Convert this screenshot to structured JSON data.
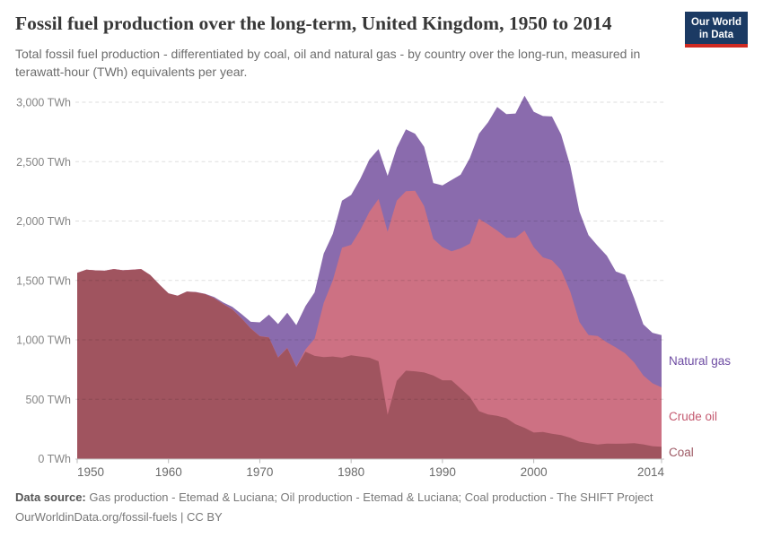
{
  "header": {
    "title": "Fossil fuel production over the long-term, United Kingdom, 1950 to 2014",
    "subtitle": "Total fossil fuel production - differentiated by coal, oil and natural gas - by country over the long-run, measured in terawatt-hour (TWh) equivalents per year.",
    "logo": {
      "line1": "Our World",
      "line2": "in Data",
      "bg_color": "#1B3A63",
      "accent_color": "#CF2A22"
    }
  },
  "chart_data": {
    "type": "area",
    "stacked": true,
    "title": "Fossil fuel production over the long-term, United Kingdom, 1950 to 2014",
    "xlabel": "",
    "ylabel": "TWh",
    "grid": true,
    "legend_position": "right",
    "xlim": [
      1950,
      2014
    ],
    "ylim": [
      0,
      3000
    ],
    "x": [
      1950,
      1951,
      1952,
      1953,
      1954,
      1955,
      1956,
      1957,
      1958,
      1959,
      1960,
      1961,
      1962,
      1963,
      1964,
      1965,
      1966,
      1967,
      1968,
      1969,
      1970,
      1971,
      1972,
      1973,
      1974,
      1975,
      1976,
      1977,
      1978,
      1979,
      1980,
      1981,
      1982,
      1983,
      1984,
      1985,
      1986,
      1987,
      1988,
      1989,
      1990,
      1991,
      1992,
      1993,
      1994,
      1995,
      1996,
      1997,
      1998,
      1999,
      2000,
      2001,
      2002,
      2003,
      2004,
      2005,
      2006,
      2007,
      2008,
      2009,
      2010,
      2011,
      2012,
      2013,
      2014
    ],
    "series": [
      {
        "name": "Coal",
        "color": "#A0545F",
        "label_color": "#9D5964",
        "values": [
          1563,
          1590,
          1584,
          1581,
          1595,
          1585,
          1589,
          1595,
          1545,
          1465,
          1390,
          1370,
          1405,
          1400,
          1385,
          1350,
          1300,
          1255,
          1180,
          1095,
          1030,
          1020,
          850,
          930,
          770,
          900,
          865,
          855,
          860,
          850,
          870,
          860,
          850,
          820,
          370,
          655,
          740,
          735,
          725,
          700,
          660,
          660,
          590,
          520,
          400,
          371,
          360,
          340,
          290,
          260,
          220,
          224,
          210,
          198,
          176,
          143,
          130,
          119,
          127,
          125,
          127,
          130,
          120,
          105,
          100
        ]
      },
      {
        "name": "Crude oil",
        "color": "#CD7183",
        "label_color": "#C45A70",
        "values": [
          1,
          1,
          1,
          1,
          1,
          1,
          1,
          1,
          1,
          1,
          1,
          1,
          1,
          1,
          1,
          2,
          2,
          2,
          2,
          2,
          2,
          2,
          3,
          4,
          4,
          19,
          145,
          455,
          642,
          926,
          930,
          1064,
          1227,
          1366,
          1540,
          1517,
          1511,
          1520,
          1400,
          1150,
          1120,
          1085,
          1180,
          1290,
          1620,
          1600,
          1560,
          1520,
          1570,
          1660,
          1560,
          1470,
          1460,
          1390,
          1230,
          1007,
          911,
          913,
          852,
          811,
          760,
          680,
          580,
          530,
          500
        ]
      },
      {
        "name": "Natural gas",
        "color": "#8A6BAD",
        "label_color": "#6E4CA3",
        "values": [
          0,
          0,
          0,
          0,
          0,
          0,
          0,
          0,
          0,
          0,
          1,
          1,
          1,
          2,
          2,
          8,
          12,
          20,
          35,
          55,
          115,
          190,
          280,
          295,
          350,
          365,
          390,
          415,
          390,
          395,
          420,
          430,
          440,
          420,
          470,
          445,
          520,
          480,
          500,
          470,
          520,
          600,
          620,
          720,
          715,
          860,
          1040,
          1040,
          1045,
          1135,
          1140,
          1190,
          1210,
          1140,
          1060,
          930,
          840,
          760,
          730,
          640,
          660,
          540,
          430,
          425,
          440
        ]
      }
    ],
    "yticks": [
      {
        "value": 0,
        "label": "0 TWh"
      },
      {
        "value": 500,
        "label": "500 TWh"
      },
      {
        "value": 1000,
        "label": "1,000 TWh"
      },
      {
        "value": 1500,
        "label": "1,500 TWh"
      },
      {
        "value": 2000,
        "label": "2,000 TWh"
      },
      {
        "value": 2500,
        "label": "2,500 TWh"
      },
      {
        "value": 3000,
        "label": "3,000 TWh"
      }
    ],
    "xticks": [
      {
        "year": 1950,
        "label": "1950"
      },
      {
        "year": 1960,
        "label": "1960"
      },
      {
        "year": 1970,
        "label": "1970"
      },
      {
        "year": 1980,
        "label": "1980"
      },
      {
        "year": 1990,
        "label": "1990"
      },
      {
        "year": 2000,
        "label": "2000"
      },
      {
        "year": 2014,
        "label": "2014"
      }
    ]
  },
  "footer": {
    "datasource_label": "Data source:",
    "datasource_text": "Gas production - Etemad & Luciana; Oil production - Etemad & Luciana; Coal production - The SHIFT Project",
    "link_text": "OurWorldinData.org/fossil-fuels",
    "separator": " | ",
    "license_text": "CC BY"
  }
}
